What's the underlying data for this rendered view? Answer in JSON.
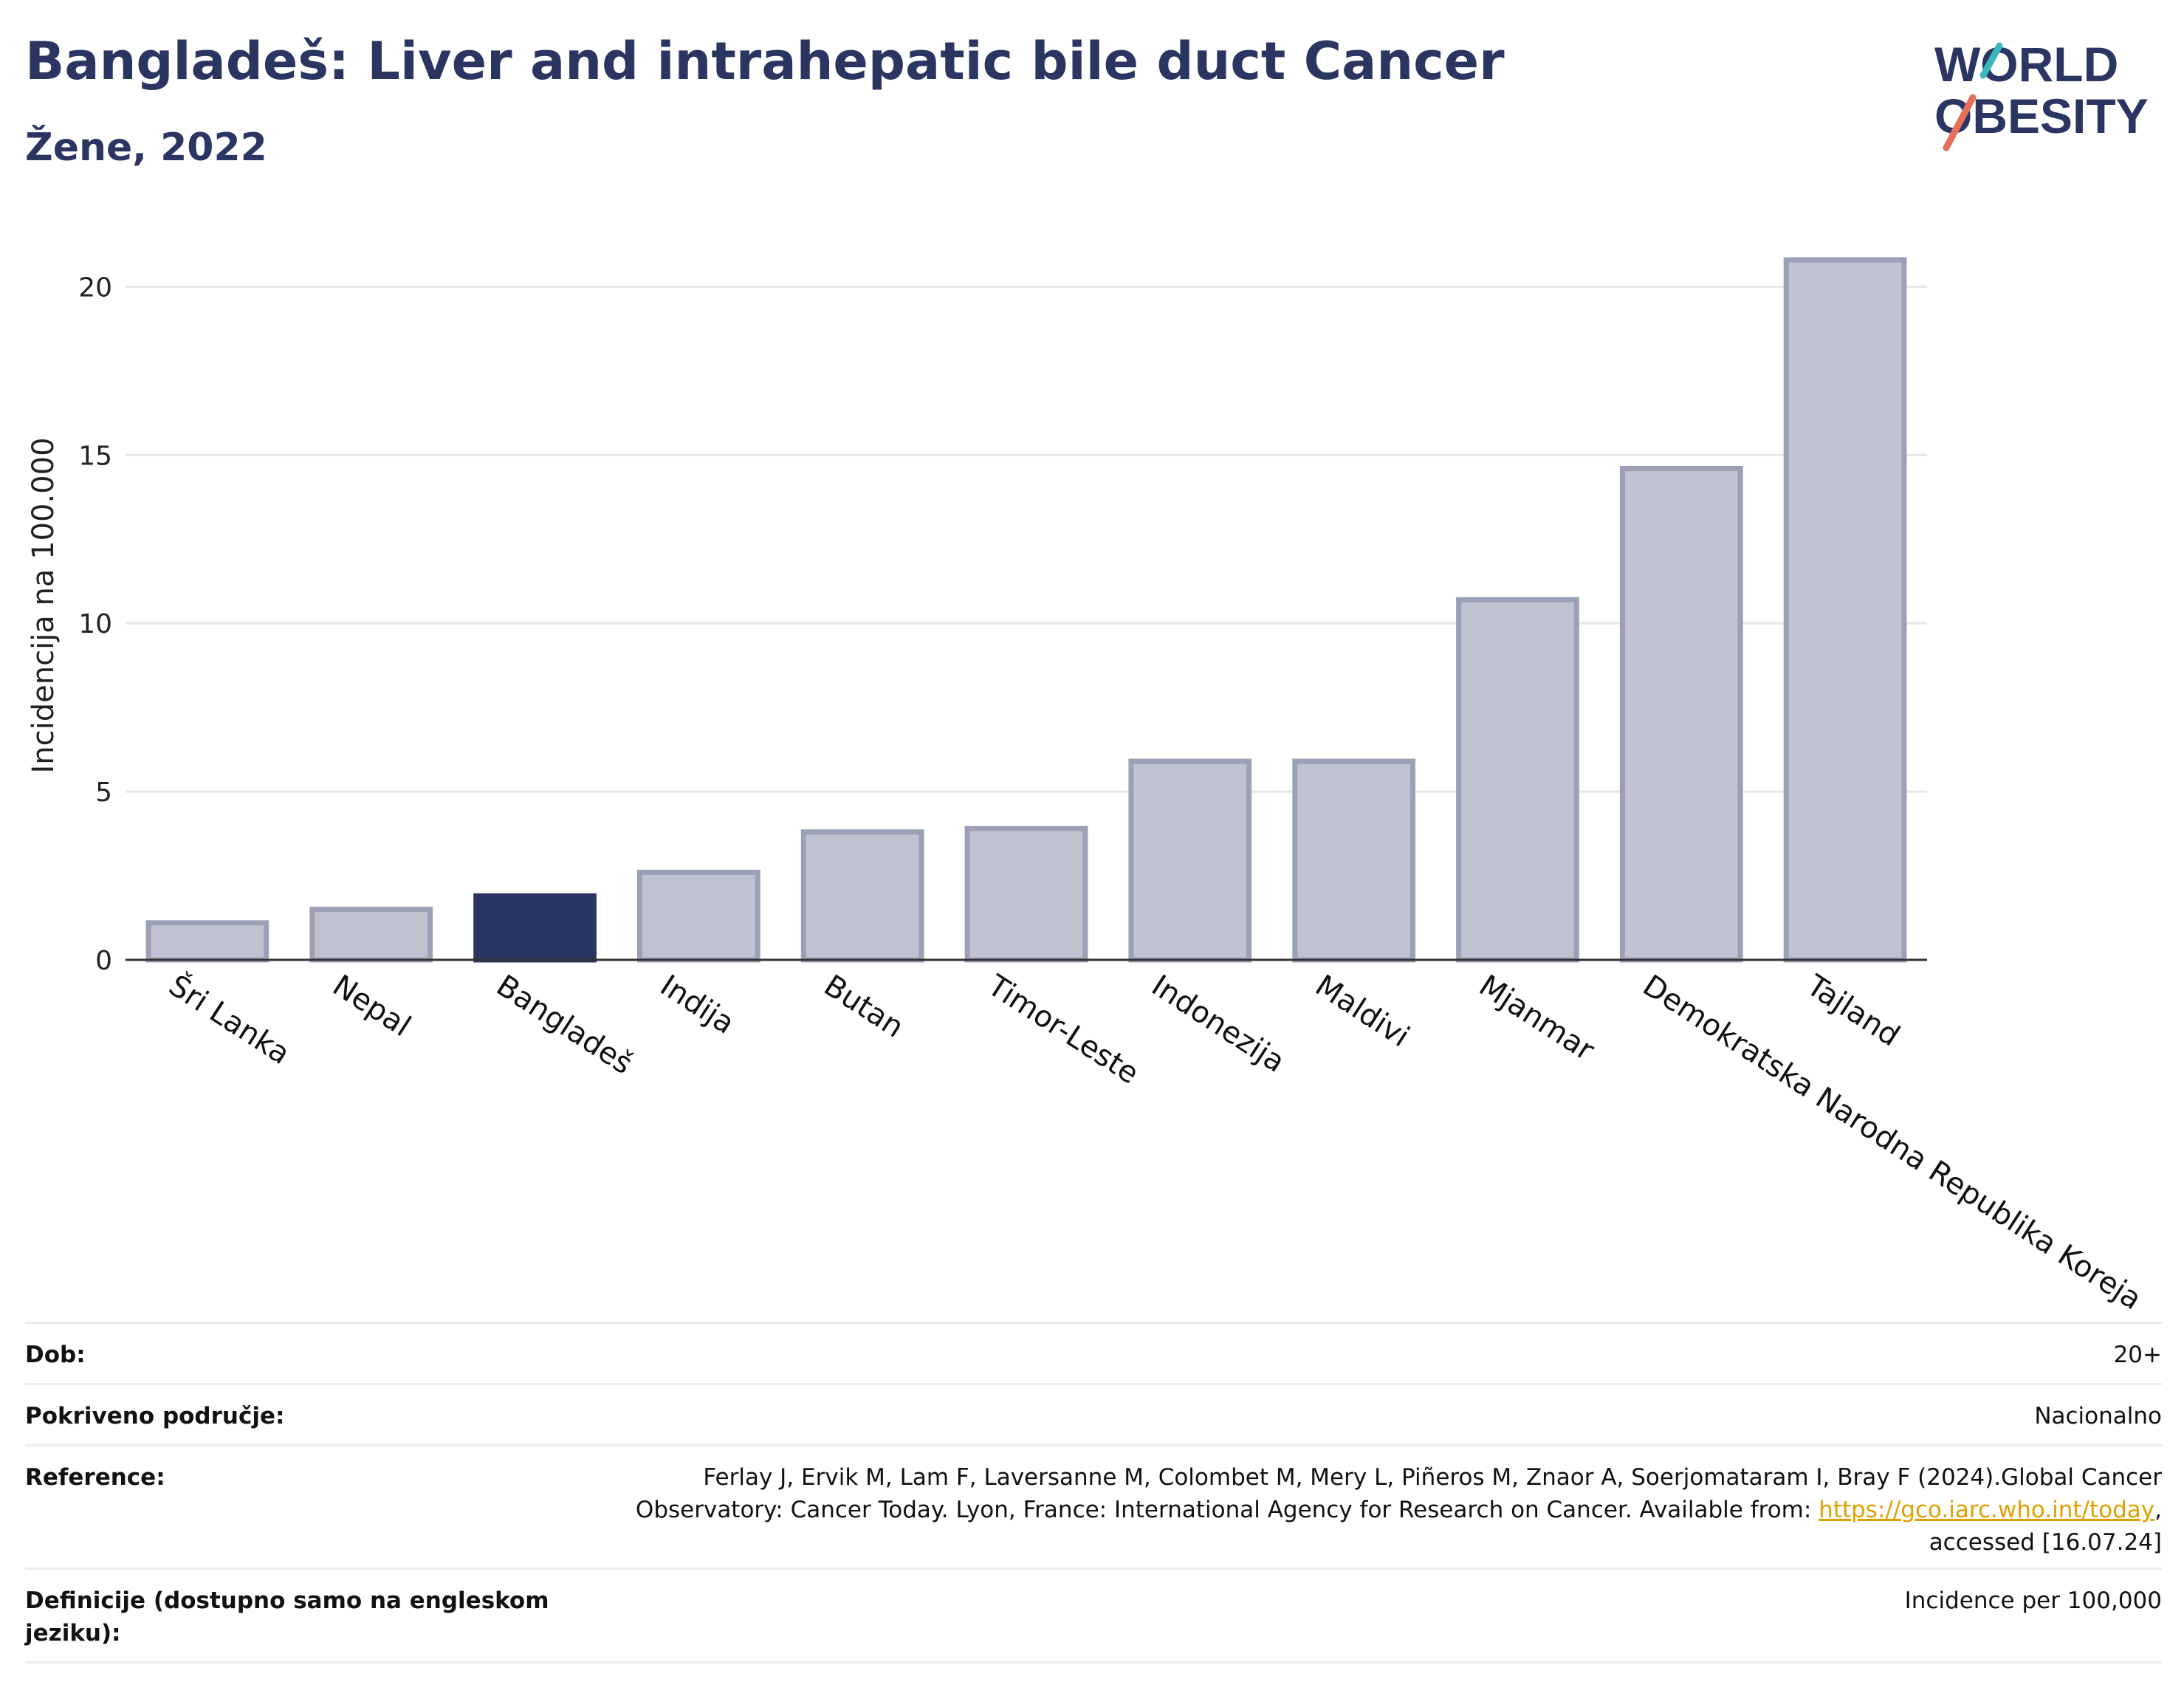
{
  "header": {
    "title": "Bangladeš: Liver and intrahepatic bile duct Cancer",
    "subtitle": "Žene, 2022"
  },
  "logo": {
    "line1": "WORLD",
    "line2": "OBESITY"
  },
  "chart_data": {
    "type": "bar",
    "categories": [
      "Šri Lanka",
      "Nepal",
      "Bangladeš",
      "Indija",
      "Butan",
      "Timor-Leste",
      "Indonezija",
      "Maldivi",
      "Mjanmar",
      "Demokratska Narodna Republika Koreja",
      "Tajland"
    ],
    "values": [
      1.1,
      1.5,
      1.9,
      2.6,
      3.8,
      3.9,
      5.9,
      5.9,
      10.7,
      14.6,
      20.8
    ],
    "highlight": "Bangladeš",
    "ylabel": "Incidencija na 100.000",
    "ylim": [
      0,
      21.5
    ],
    "yticks": [
      0,
      5,
      10,
      15,
      20
    ],
    "grid": true,
    "colors": {
      "highlight": "#2b3561",
      "other": "#bfc3d0",
      "other_border": "#9aa0b5"
    }
  },
  "info": [
    {
      "key": "Dob:",
      "value": "20+"
    },
    {
      "key": "Pokriveno područje:",
      "value": "Nacionalno"
    },
    {
      "key": "Reference:",
      "value_pre": "Ferlay J, Ervik M, Lam F, Laversanne M, Colombet M, Mery L, Piñeros M, Znaor A, Soerjomataram I, Bray F (2024).Global Cancer Observatory: Cancer Today. Lyon, France: International Agency for Research on Cancer. Available from: ",
      "link": "https://gco.iarc.who.int/today",
      "value_post": ", accessed [16.07.24]"
    },
    {
      "key": "Definicije (dostupno samo na engleskom jeziku):",
      "value": "Incidence per 100,000"
    }
  ]
}
